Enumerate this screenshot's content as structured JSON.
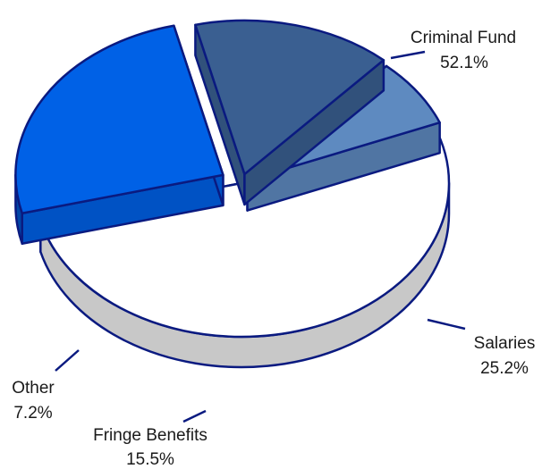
{
  "chart_data": {
    "type": "pie",
    "title": "",
    "three_d": true,
    "exploded": true,
    "slices": [
      {
        "label": "Criminal Fund",
        "value": 52.1,
        "value_label": "52.1%",
        "color": "#ffffff"
      },
      {
        "label": "Salaries",
        "value": 25.2,
        "value_label": "25.2%",
        "color": "#0061e6"
      },
      {
        "label": "Fringe Benefits",
        "value": 15.5,
        "value_label": "15.5%",
        "color": "#3a5f91"
      },
      {
        "label": "Other",
        "value": 7.2,
        "value_label": "7.2%",
        "color": "#5e8ac0"
      }
    ],
    "outline_color": "#0a1a80"
  }
}
